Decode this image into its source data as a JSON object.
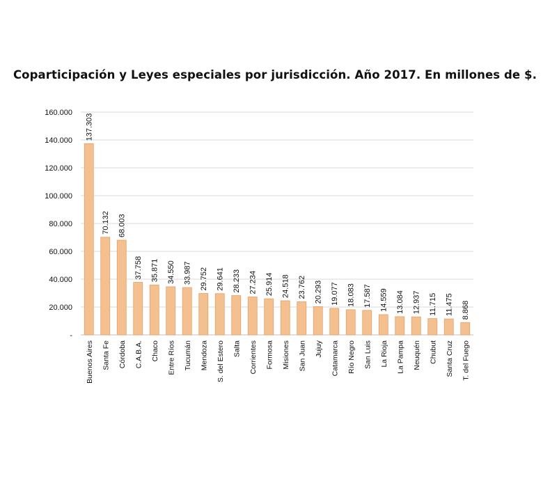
{
  "chart_data": {
    "type": "bar",
    "title": "Coparticipación y Leyes especiales por jurisdicción. Año 2017. En millones de $.",
    "xlabel": "",
    "ylabel": "",
    "ylim": [
      0,
      160000
    ],
    "yticks": [
      "-",
      "20.000",
      "40.000",
      "60.000",
      "80.000",
      "100.000",
      "120.000",
      "140.000",
      "160.000"
    ],
    "grid": true,
    "bar_color": "#F5C08F",
    "bar_edge_color": "#E5A06A",
    "categories": [
      "Buenos Aires",
      "Santa Fe",
      "Córdoba",
      "C.A.B.A.",
      "Chaco",
      "Entre Ríos",
      "Tucumán",
      "Mendoza",
      "S. del Estero",
      "Salta",
      "Corrientes",
      "Formosa",
      "Misiones",
      "San Juan",
      "Jujuy",
      "Catamarca",
      "Río Negro",
      "San Luis",
      "La Rioja",
      "La Pampa",
      "Neuquén",
      "Chubut",
      "Santa Cruz",
      "T. del Fuego"
    ],
    "values": [
      137303,
      70132,
      68003,
      37758,
      35871,
      34550,
      33987,
      29752,
      29641,
      28233,
      27234,
      25914,
      24518,
      23762,
      20293,
      19077,
      18083,
      17587,
      14559,
      13084,
      12937,
      11715,
      11475,
      8868
    ],
    "value_labels": [
      "137.303",
      "70.132",
      "68.003",
      "37.758",
      "35.871",
      "34.550",
      "33.987",
      "29.752",
      "29.641",
      "28.233",
      "27.234",
      "25.914",
      "24.518",
      "23.762",
      "20.293",
      "19.077",
      "18.083",
      "17.587",
      "14.559",
      "13.084",
      "12.937",
      "11.715",
      "11.475",
      "8.868"
    ]
  }
}
